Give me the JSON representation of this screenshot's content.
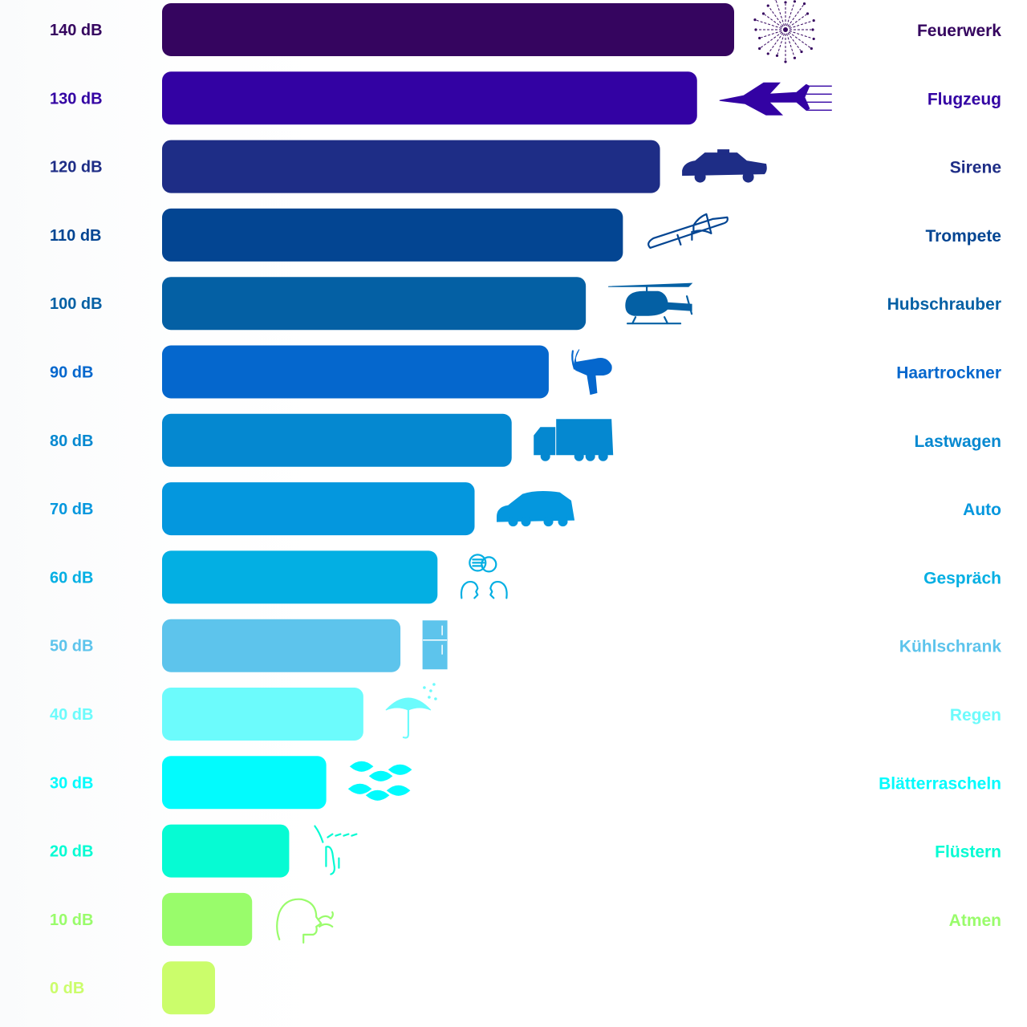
{
  "chart_data": {
    "type": "bar",
    "orientation": "horizontal",
    "title": "",
    "xlabel": "",
    "ylabel": "",
    "grid": false,
    "legend": "none",
    "categories": [
      "140 dB",
      "130 dB",
      "120 dB",
      "110 dB",
      "100 dB",
      "90 dB",
      "80 dB",
      "70 dB",
      "60 dB",
      "50 dB",
      "40 dB",
      "30 dB",
      "20 dB",
      "10 dB",
      "0 dB"
    ],
    "values": [
      140,
      130,
      120,
      110,
      100,
      90,
      80,
      70,
      60,
      50,
      40,
      30,
      20,
      10,
      0
    ],
    "sources": [
      "Feuerwerk",
      "Flugzeug",
      "Sirene",
      "Trompete",
      "Hubschrauber",
      "Haartrockner",
      "Lastwagen",
      "Auto",
      "Gespräch",
      "Kühlschrank",
      "Regen",
      "Blätterrascheln",
      "Flüstern",
      "Atmen",
      ""
    ],
    "icons": [
      "fireworks-icon",
      "jet-plane-icon",
      "police-car-icon",
      "trombone-icon",
      "helicopter-icon",
      "hair-dryer-icon",
      "truck-icon",
      "car-icon",
      "conversation-icon",
      "fridge-icon",
      "rain-umbrella-icon",
      "leaves-icon",
      "whisper-icon",
      "breathing-icon",
      ""
    ],
    "colors": [
      "#35055f",
      "#3302a3",
      "#1e2d86",
      "#034592",
      "#0460a4",
      "#0567cd",
      "#0588d0",
      "#0497de",
      "#03afe3",
      "#5dc4ec",
      "#6cfbfc",
      "#02fbfd",
      "#06fbd3",
      "#99fc6b",
      "#cbfd6b"
    ],
    "label_colors": [
      "#35055f",
      "#3302a3",
      "#1e2d86",
      "#034592",
      "#0460a4",
      "#0567cd",
      "#0588d0",
      "#0497de",
      "#03afe3",
      "#5dc4ec",
      "#6cfbfc",
      "#02fbfd",
      "#06fbd3",
      "#99fc6b",
      "#cbfd6b"
    ]
  }
}
